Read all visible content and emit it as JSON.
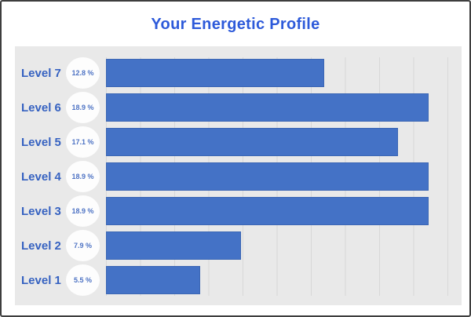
{
  "title": "Your Energetic Profile",
  "chart_data": {
    "type": "bar",
    "orientation": "horizontal",
    "title": "Your Energetic Profile",
    "categories": [
      "Level 7",
      "Level 6",
      "Level 5",
      "Level 4",
      "Level 3",
      "Level 2",
      "Level 1"
    ],
    "values": [
      12.8,
      18.9,
      17.1,
      18.9,
      18.9,
      7.9,
      5.5
    ],
    "value_labels": [
      "12.8 %",
      "18.9 %",
      "17.1 %",
      "18.9 %",
      "18.9 %",
      "7.9 %",
      "5.5 %"
    ],
    "xlabel": "",
    "ylabel": "",
    "xlim": [
      0,
      20
    ],
    "grid": true,
    "gridline_step_pct": 2,
    "legend": false,
    "bar_color": "#4472c6",
    "panel_bg": "#e9e9e9",
    "title_color": "#2d5ada",
    "label_color": "#3662c1",
    "value_text_color": "#4e73c4"
  }
}
